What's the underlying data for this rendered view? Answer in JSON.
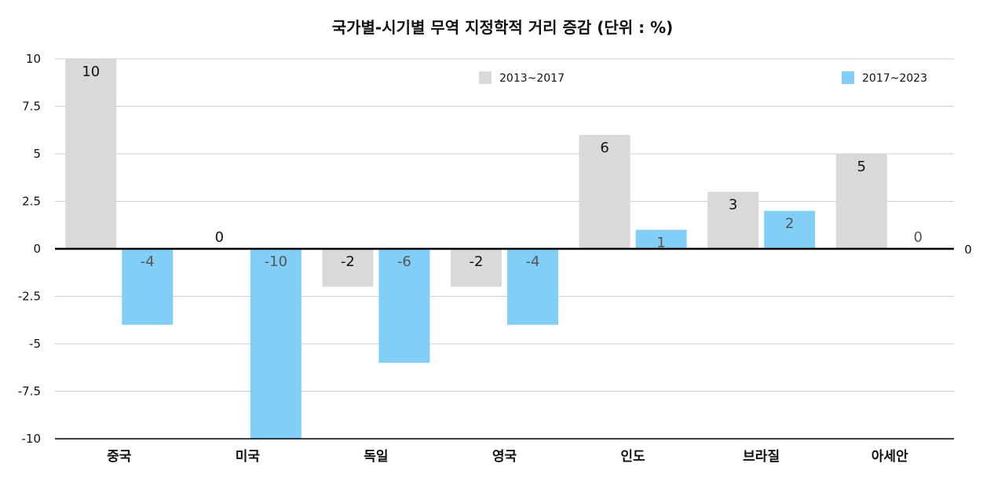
{
  "chart_data": {
    "type": "bar",
    "title": "국가별-시기별 무역 지정학적 거리 증감 (단위 : %)",
    "xlabel": "",
    "ylabel": "",
    "categories": [
      "중국",
      "미국",
      "독일",
      "영국",
      "인도",
      "브라질",
      "아세안"
    ],
    "series": [
      {
        "name": "2013~2017",
        "values": [
          10,
          0,
          -2,
          -2,
          6,
          3,
          5
        ],
        "color": "#d9d9d9",
        "label_color": "#111111"
      },
      {
        "name": "2017~2023",
        "values": [
          -4,
          -10,
          -6,
          -4,
          1,
          2,
          0
        ],
        "color": "#81cff7",
        "label_color": "#555555"
      }
    ],
    "ylim": [
      -10,
      10
    ],
    "yticks": [
      "10",
      "7.5",
      "5",
      "2.5",
      "0",
      "-2.5",
      "-5",
      "-7.5",
      "-10"
    ],
    "ytick_values": [
      10,
      7.5,
      5,
      2.5,
      0,
      -2.5,
      -5,
      -7.5,
      -10
    ],
    "zero_line_label": "0",
    "grid": true,
    "legend": "top"
  }
}
